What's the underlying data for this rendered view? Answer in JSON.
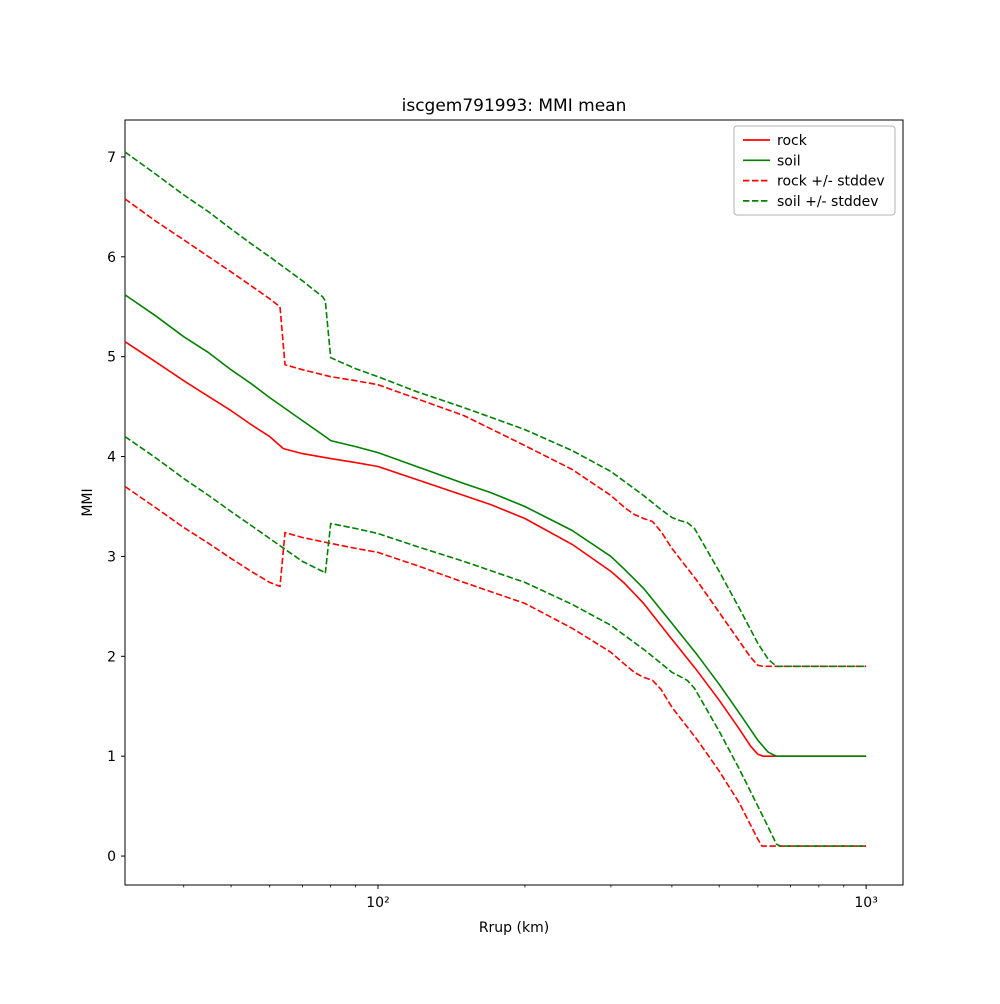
{
  "figure": {
    "background": "#ffffff",
    "frame_color": "#000000"
  },
  "chart_data": {
    "type": "line",
    "title": "iscgem791993: MMI mean",
    "xlabel": "Rrup (km)",
    "ylabel": "MMI",
    "x_scale": "log",
    "x_range": [
      30.32,
      1190
    ],
    "y_range": [
      -0.29,
      7.37
    ],
    "y_ticks": [
      0,
      1,
      2,
      3,
      4,
      5,
      6,
      7
    ],
    "x_major_ticks": [
      {
        "value": 100,
        "label": "10²"
      },
      {
        "value": 1000,
        "label": "10³"
      }
    ],
    "x_minor_ticks": [
      40,
      50,
      60,
      70,
      80,
      90,
      200,
      300,
      400,
      500,
      600,
      700,
      800,
      900
    ],
    "grid": false,
    "legend": {
      "position": "upper right",
      "entries": [
        {
          "label": "rock",
          "color": "#ff0000",
          "style": "solid"
        },
        {
          "label": "soil",
          "color": "#008000",
          "style": "solid"
        },
        {
          "label": "rock +/- stddev",
          "color": "#ff0000",
          "style": "dashed"
        },
        {
          "label": "soil +/- stddev",
          "color": "#008000",
          "style": "dashed"
        }
      ]
    },
    "series": [
      {
        "name": "rock",
        "color": "#ff0000",
        "style": "solid",
        "points": [
          [
            30.32,
            5.15
          ],
          [
            35,
            4.95
          ],
          [
            40,
            4.76
          ],
          [
            45,
            4.6
          ],
          [
            50,
            4.46
          ],
          [
            55,
            4.32
          ],
          [
            60,
            4.2
          ],
          [
            64,
            4.08
          ],
          [
            70,
            4.03
          ],
          [
            80,
            3.98
          ],
          [
            90,
            3.94
          ],
          [
            100,
            3.9
          ],
          [
            120,
            3.77
          ],
          [
            150,
            3.61
          ],
          [
            170,
            3.52
          ],
          [
            200,
            3.38
          ],
          [
            250,
            3.12
          ],
          [
            300,
            2.85
          ],
          [
            320,
            2.73
          ],
          [
            350,
            2.53
          ],
          [
            400,
            2.17
          ],
          [
            450,
            1.86
          ],
          [
            500,
            1.56
          ],
          [
            550,
            1.27
          ],
          [
            580,
            1.1
          ],
          [
            600,
            1.02
          ],
          [
            615,
            1.0
          ],
          [
            800,
            1.0
          ],
          [
            1000,
            1.0
          ]
        ]
      },
      {
        "name": "soil",
        "color": "#008000",
        "style": "solid",
        "points": [
          [
            30.32,
            5.62
          ],
          [
            35,
            5.41
          ],
          [
            40,
            5.2
          ],
          [
            45,
            5.04
          ],
          [
            50,
            4.87
          ],
          [
            55,
            4.73
          ],
          [
            60,
            4.59
          ],
          [
            70,
            4.36
          ],
          [
            78,
            4.2
          ],
          [
            80,
            4.16
          ],
          [
            90,
            4.1
          ],
          [
            100,
            4.04
          ],
          [
            120,
            3.9
          ],
          [
            150,
            3.73
          ],
          [
            170,
            3.64
          ],
          [
            200,
            3.5
          ],
          [
            250,
            3.26
          ],
          [
            300,
            3.0
          ],
          [
            320,
            2.87
          ],
          [
            350,
            2.68
          ],
          [
            400,
            2.33
          ],
          [
            450,
            2.02
          ],
          [
            500,
            1.72
          ],
          [
            550,
            1.43
          ],
          [
            600,
            1.16
          ],
          [
            630,
            1.04
          ],
          [
            655,
            1.0
          ],
          [
            800,
            1.0
          ],
          [
            1000,
            1.0
          ]
        ]
      },
      {
        "name": "rock-plus-stddev",
        "color": "#ff0000",
        "style": "dashed",
        "points": [
          [
            30.32,
            6.58
          ],
          [
            35,
            6.36
          ],
          [
            40,
            6.17
          ],
          [
            45,
            6.0
          ],
          [
            50,
            5.85
          ],
          [
            55,
            5.71
          ],
          [
            60,
            5.58
          ],
          [
            63,
            5.5
          ],
          [
            64.5,
            4.92
          ],
          [
            70,
            4.87
          ],
          [
            80,
            4.8
          ],
          [
            90,
            4.76
          ],
          [
            100,
            4.72
          ],
          [
            120,
            4.58
          ],
          [
            150,
            4.41
          ],
          [
            200,
            4.11
          ],
          [
            250,
            3.87
          ],
          [
            300,
            3.61
          ],
          [
            320,
            3.49
          ],
          [
            335,
            3.42
          ],
          [
            350,
            3.38
          ],
          [
            365,
            3.35
          ],
          [
            380,
            3.25
          ],
          [
            400,
            3.08
          ],
          [
            450,
            2.76
          ],
          [
            500,
            2.44
          ],
          [
            550,
            2.15
          ],
          [
            580,
            1.99
          ],
          [
            600,
            1.91
          ],
          [
            615,
            1.9
          ],
          [
            800,
            1.9
          ],
          [
            1000,
            1.9
          ]
        ]
      },
      {
        "name": "rock-minus-stddev",
        "color": "#ff0000",
        "style": "dashed",
        "points": [
          [
            30.32,
            3.7
          ],
          [
            35,
            3.49
          ],
          [
            40,
            3.29
          ],
          [
            45,
            3.13
          ],
          [
            50,
            2.98
          ],
          [
            55,
            2.85
          ],
          [
            60,
            2.74
          ],
          [
            63,
            2.7
          ],
          [
            64.5,
            3.24
          ],
          [
            70,
            3.19
          ],
          [
            80,
            3.13
          ],
          [
            90,
            3.08
          ],
          [
            100,
            3.04
          ],
          [
            120,
            2.91
          ],
          [
            150,
            2.74
          ],
          [
            200,
            2.53
          ],
          [
            250,
            2.28
          ],
          [
            300,
            2.04
          ],
          [
            320,
            1.92
          ],
          [
            335,
            1.84
          ],
          [
            350,
            1.79
          ],
          [
            365,
            1.76
          ],
          [
            380,
            1.67
          ],
          [
            400,
            1.49
          ],
          [
            450,
            1.17
          ],
          [
            500,
            0.85
          ],
          [
            550,
            0.53
          ],
          [
            580,
            0.31
          ],
          [
            600,
            0.17
          ],
          [
            612,
            0.1
          ],
          [
            800,
            0.1
          ],
          [
            1000,
            0.1
          ]
        ]
      },
      {
        "name": "soil-plus-stddev",
        "color": "#008000",
        "style": "dashed",
        "points": [
          [
            30.32,
            7.05
          ],
          [
            35,
            6.83
          ],
          [
            40,
            6.62
          ],
          [
            45,
            6.45
          ],
          [
            50,
            6.28
          ],
          [
            55,
            6.13
          ],
          [
            60,
            6.0
          ],
          [
            70,
            5.76
          ],
          [
            77,
            5.6
          ],
          [
            78,
            5.56
          ],
          [
            80,
            4.99
          ],
          [
            90,
            4.88
          ],
          [
            100,
            4.8
          ],
          [
            120,
            4.65
          ],
          [
            150,
            4.49
          ],
          [
            200,
            4.27
          ],
          [
            250,
            4.06
          ],
          [
            300,
            3.85
          ],
          [
            350,
            3.61
          ],
          [
            380,
            3.47
          ],
          [
            400,
            3.39
          ],
          [
            415,
            3.36
          ],
          [
            430,
            3.34
          ],
          [
            445,
            3.28
          ],
          [
            500,
            2.85
          ],
          [
            550,
            2.48
          ],
          [
            600,
            2.13
          ],
          [
            630,
            1.97
          ],
          [
            655,
            1.9
          ],
          [
            800,
            1.9
          ],
          [
            1000,
            1.9
          ]
        ]
      },
      {
        "name": "soil-minus-stddev",
        "color": "#008000",
        "style": "dashed",
        "points": [
          [
            30.32,
            4.2
          ],
          [
            35,
            3.99
          ],
          [
            40,
            3.78
          ],
          [
            45,
            3.61
          ],
          [
            50,
            3.45
          ],
          [
            55,
            3.31
          ],
          [
            60,
            3.18
          ],
          [
            70,
            2.95
          ],
          [
            77,
            2.85
          ],
          [
            78,
            2.83
          ],
          [
            80,
            3.33
          ],
          [
            90,
            3.28
          ],
          [
            100,
            3.23
          ],
          [
            120,
            3.1
          ],
          [
            150,
            2.95
          ],
          [
            200,
            2.74
          ],
          [
            250,
            2.52
          ],
          [
            300,
            2.31
          ],
          [
            350,
            2.07
          ],
          [
            380,
            1.93
          ],
          [
            400,
            1.84
          ],
          [
            415,
            1.8
          ],
          [
            430,
            1.76
          ],
          [
            445,
            1.68
          ],
          [
            500,
            1.25
          ],
          [
            550,
            0.87
          ],
          [
            600,
            0.5
          ],
          [
            630,
            0.29
          ],
          [
            655,
            0.12
          ],
          [
            668,
            0.1
          ],
          [
            800,
            0.1
          ],
          [
            1000,
            0.1
          ]
        ]
      }
    ]
  }
}
